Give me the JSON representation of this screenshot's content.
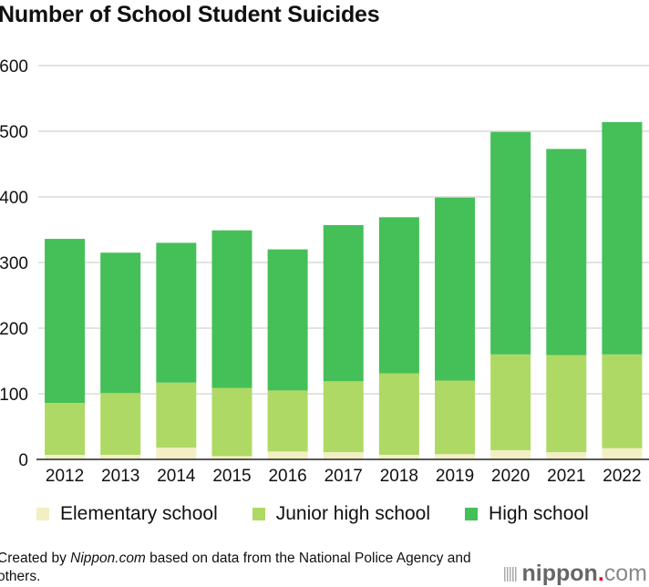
{
  "chart_data": {
    "type": "bar",
    "stacked": true,
    "title": "Number of School Student Suicides",
    "xlabel": "",
    "ylabel": "",
    "ylim": [
      0,
      600
    ],
    "yticks": [
      0,
      100,
      200,
      300,
      400,
      500,
      600
    ],
    "grid": true,
    "legend_position": "bottom",
    "categories": [
      "2012",
      "2013",
      "2014",
      "2015",
      "2016",
      "2017",
      "2018",
      "2019",
      "2020",
      "2021",
      "2022"
    ],
    "series": [
      {
        "name": "Elementary school",
        "color": "#f2efc4",
        "values": [
          7,
          7,
          18,
          5,
          12,
          11,
          7,
          8,
          14,
          11,
          17
        ]
      },
      {
        "name": "Junior high school",
        "color": "#aed964",
        "values": [
          79,
          94,
          99,
          104,
          93,
          108,
          124,
          112,
          146,
          148,
          143
        ]
      },
      {
        "name": "High school",
        "color": "#45bf58",
        "values": [
          250,
          214,
          213,
          240,
          215,
          238,
          238,
          279,
          339,
          314,
          354
        ]
      }
    ]
  },
  "source": {
    "prefix": "Created by ",
    "brand": "Nippon.com",
    "suffix": " based on data from the National Police Agency and others."
  },
  "logo": {
    "name": "nippon",
    "dot": ".",
    "tld": "com"
  }
}
